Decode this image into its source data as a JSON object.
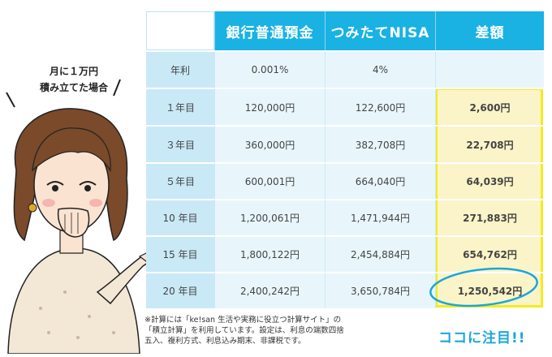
{
  "bubble": {
    "line1": "月に１万円",
    "line2": "積み立てた場合"
  },
  "table": {
    "headers": [
      "",
      "銀行普通預金",
      "つみたてNISA",
      "差額"
    ],
    "rows": [
      {
        "label": "年利",
        "bank": "0.001%",
        "nisa": "4%",
        "diff": ""
      },
      {
        "label": "１年目",
        "bank": "120,000円",
        "nisa": "122,600円",
        "diff": "2,600円"
      },
      {
        "label": "３年目",
        "bank": "360,000円",
        "nisa": "382,708円",
        "diff": "22,708円"
      },
      {
        "label": "５年目",
        "bank": "600,001円",
        "nisa": "664,040円",
        "diff": "64,039円"
      },
      {
        "label": "10 年目",
        "bank": "1,200,061円",
        "nisa": "1,471,944円",
        "diff": "271,883円"
      },
      {
        "label": "15 年目",
        "bank": "1,800,122円",
        "nisa": "2,454,884円",
        "diff": "654,762円"
      },
      {
        "label": "20 年目",
        "bank": "2,400,242円",
        "nisa": "3,650,784円",
        "diff": "1,250,542円"
      }
    ]
  },
  "note": {
    "line1": "※計算には「ke!san 生活や実務に役立つ計算サイト」の",
    "line2": "「積立計算」を利用しています。設定は、利息の端数四捨",
    "line3": "五入、複利方式、利息込み期末、非課税です。"
  },
  "callout": "ココに注目!!",
  "colors": {
    "header": "#19b2e3",
    "row_bg": "#e8f6fc",
    "label_bg": "#c9e9f7",
    "highlight_border": "#f7ea1d",
    "highlight_bg": "#fbf4c8",
    "callout": "#1aa7d9"
  }
}
